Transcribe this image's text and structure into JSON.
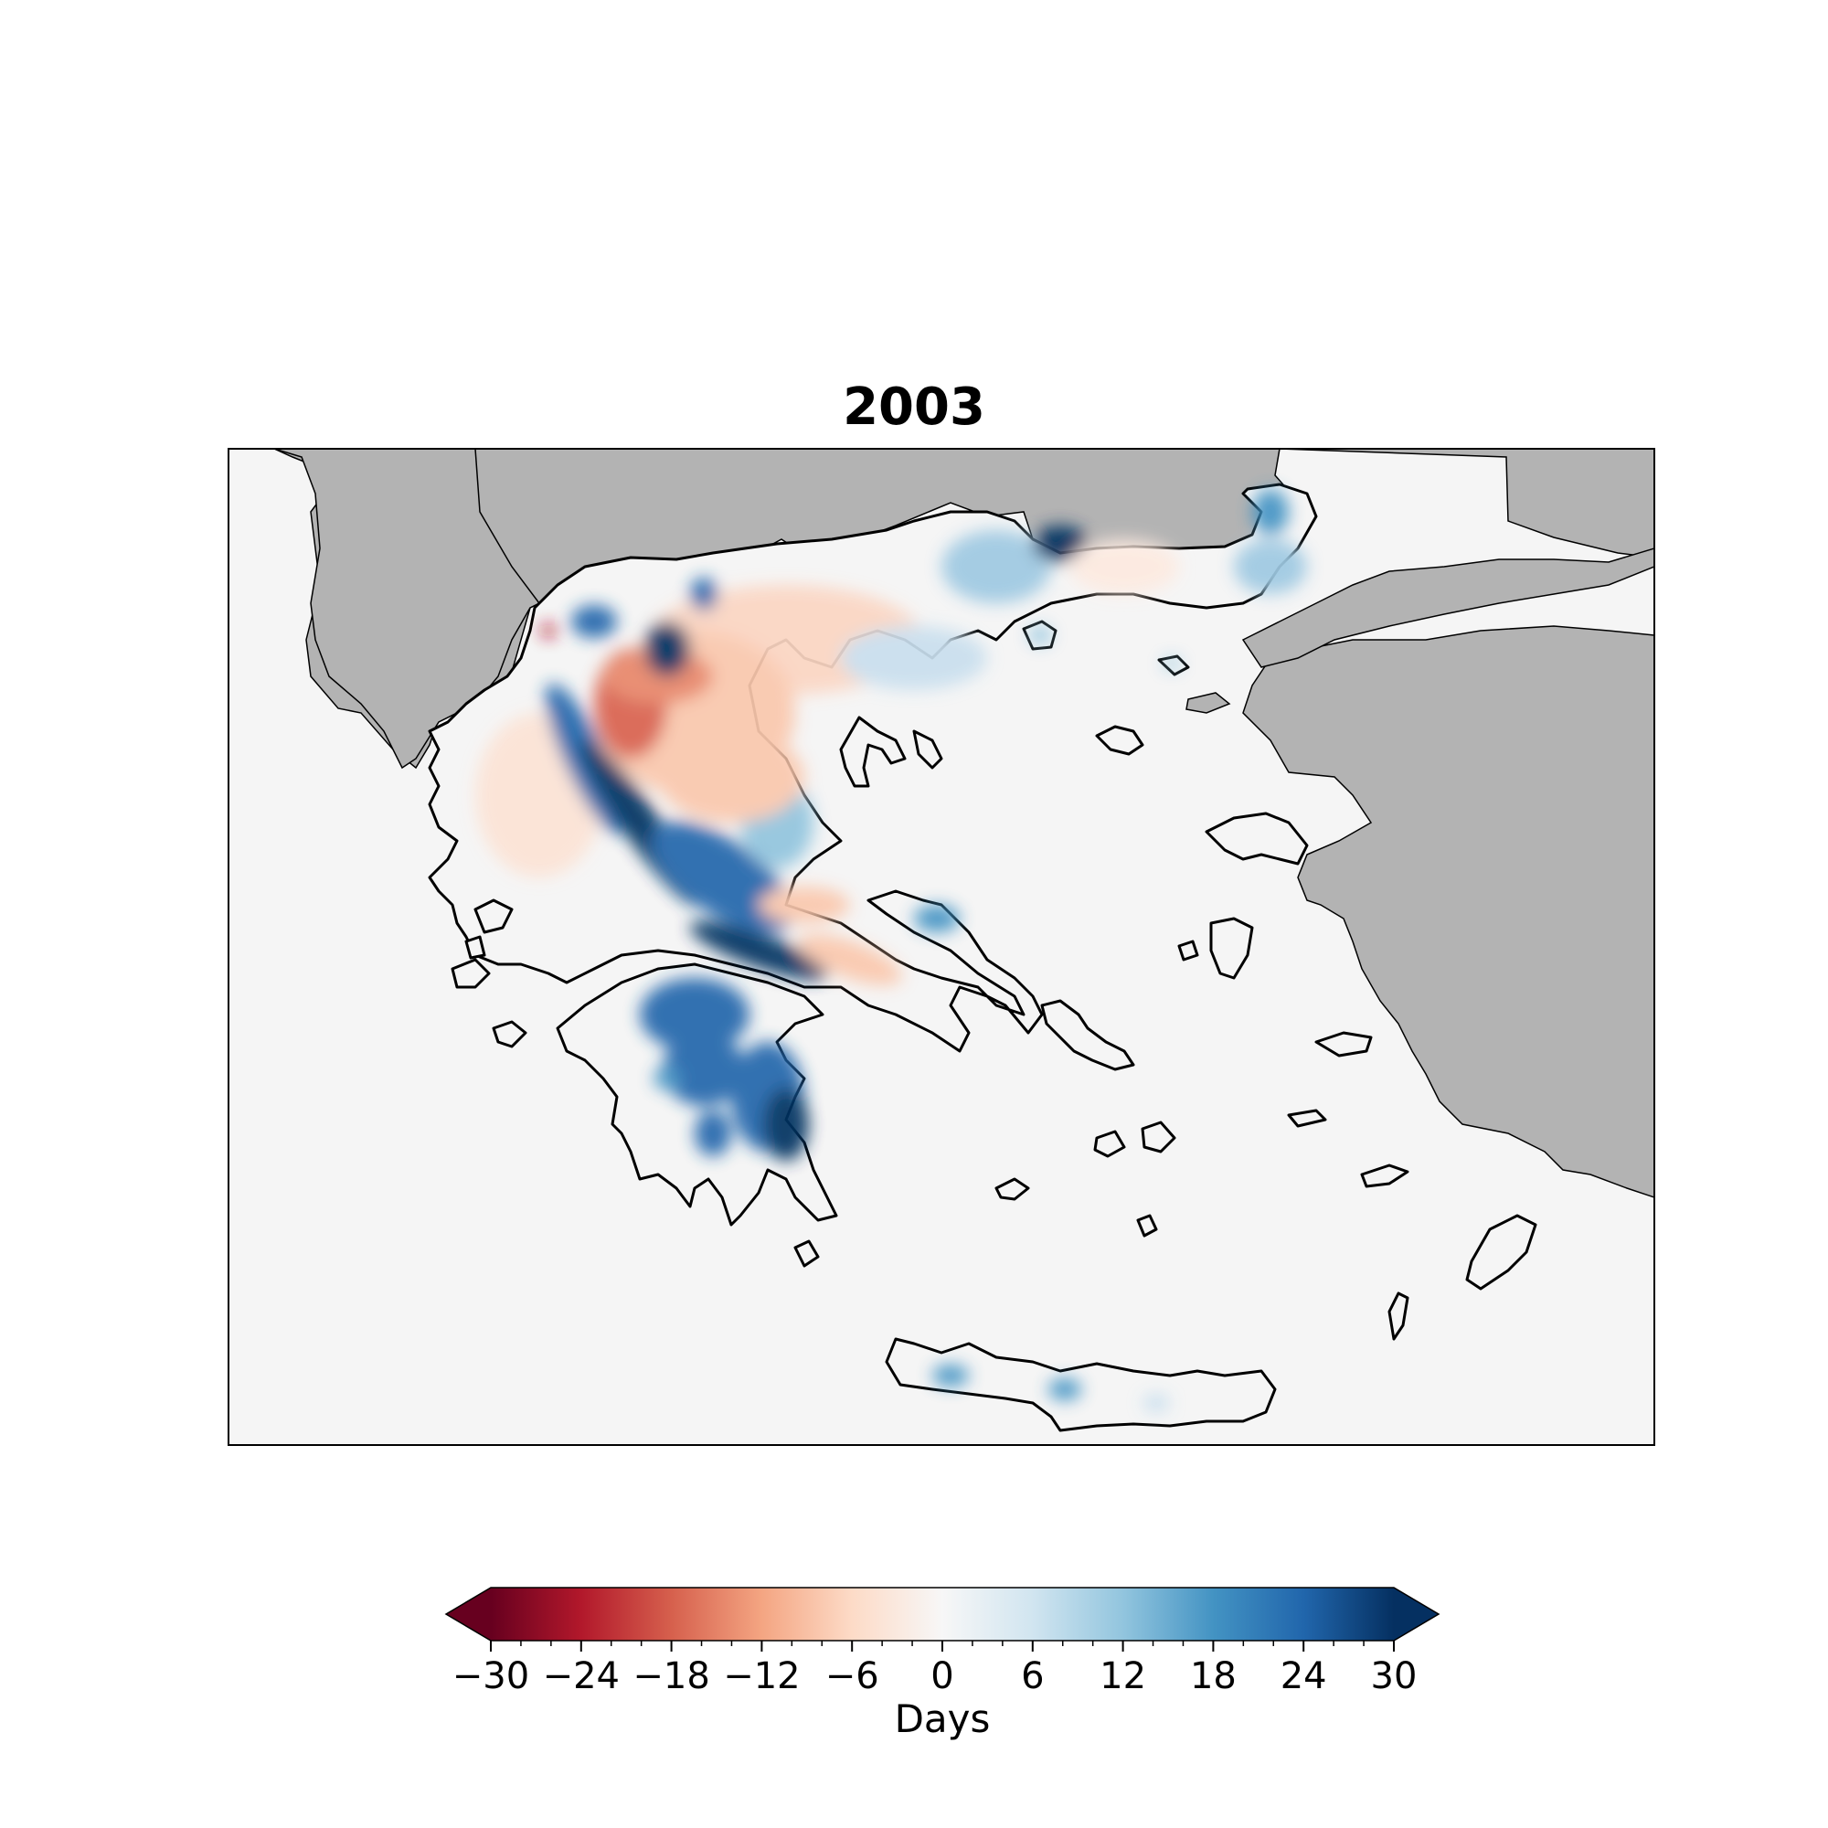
{
  "figure": {
    "title": "2003"
  },
  "colorbar": {
    "label": "Days",
    "min": -30,
    "max": 30,
    "extend": "both",
    "ticks": [
      -30,
      -24,
      -18,
      -12,
      -6,
      0,
      6,
      12,
      18,
      24,
      30
    ],
    "tick_labels": [
      "−30",
      "−24",
      "−18",
      "−12",
      "−6",
      "0",
      "6",
      "12",
      "18",
      "24",
      "30"
    ],
    "colormap": "RdBu",
    "colors": [
      "#67001f",
      "#b2182b",
      "#d6604d",
      "#f4a582",
      "#fddbc7",
      "#f7f7f7",
      "#d1e5f0",
      "#92c5de",
      "#4393c3",
      "#2166ac",
      "#053061"
    ]
  },
  "map": {
    "region": "Greece",
    "ocean_color": "#f5f5f5",
    "neighbor_land_color": "#b3b3b3",
    "coastline_color": "#000000"
  }
}
